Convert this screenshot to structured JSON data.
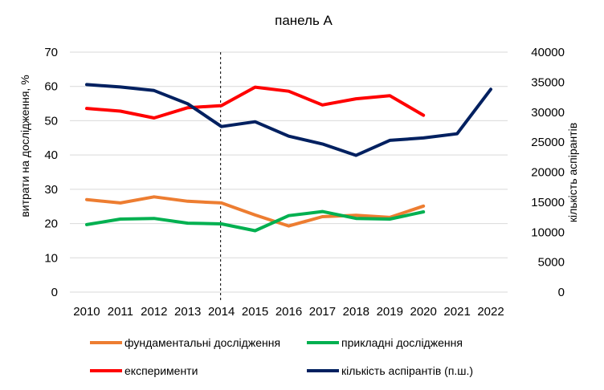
{
  "chart_data": {
    "type": "line",
    "title": "панель А",
    "x": [
      "2010",
      "2011",
      "2012",
      "2013",
      "2014",
      "2015",
      "2016",
      "2017",
      "2018",
      "2019",
      "2020",
      "2021",
      "2022"
    ],
    "y_left": {
      "label": "витрати на дослідження, %",
      "ylim": [
        0,
        70
      ],
      "ticks": [
        "0",
        "10",
        "20",
        "30",
        "40",
        "50",
        "60",
        "70"
      ]
    },
    "y_right": {
      "label": "кількість аспірантів",
      "ylim": [
        0,
        40000
      ],
      "ticks": [
        "0",
        "5000",
        "10000",
        "15000",
        "20000",
        "25000",
        "30000",
        "35000",
        "40000"
      ]
    },
    "marker_line": {
      "x": "2014",
      "style": "dashed"
    },
    "series": [
      {
        "name": "фундаментальні дослідження",
        "axis": "left",
        "color": "#ED7D31",
        "values": [
          27.0,
          26.0,
          27.8,
          26.5,
          26.0,
          22.5,
          19.3,
          22.0,
          22.4,
          21.8,
          25.1,
          null,
          null
        ]
      },
      {
        "name": "прикладні дослідження",
        "axis": "left",
        "color": "#00B050",
        "values": [
          19.7,
          21.3,
          21.5,
          20.1,
          19.9,
          17.9,
          22.3,
          23.5,
          21.5,
          21.3,
          23.4,
          null,
          null
        ]
      },
      {
        "name": "експерименти",
        "axis": "left",
        "color": "#FF0000",
        "values": [
          53.6,
          52.8,
          50.8,
          53.8,
          54.4,
          59.8,
          58.6,
          54.6,
          56.4,
          57.3,
          51.6,
          null,
          null
        ]
      },
      {
        "name": "кількість аспірантів (п.ш.)",
        "axis": "right",
        "color": "#002060",
        "values": [
          34600,
          34200,
          33600,
          31400,
          27600,
          28400,
          26000,
          24700,
          22800,
          25300,
          25700,
          26400,
          33800
        ]
      }
    ],
    "legend_position": "bottom",
    "grid": true
  }
}
